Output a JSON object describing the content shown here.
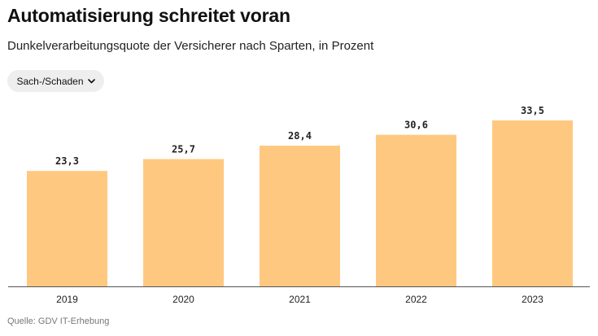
{
  "header": {
    "title": "Automatisierung schreitet voran",
    "subtitle": "Dunkelverarbeitungsquote der Versicherer nach Sparten, in Prozent"
  },
  "filter": {
    "selected": "Sach-/Schaden",
    "icon": "chevron-down-icon"
  },
  "chart_data": {
    "type": "bar",
    "categories": [
      "2019",
      "2020",
      "2021",
      "2022",
      "2023"
    ],
    "values": [
      23.3,
      25.7,
      28.4,
      30.6,
      33.5
    ],
    "value_labels": [
      "23,3",
      "25,7",
      "28,4",
      "30,6",
      "33,5"
    ],
    "title": "Automatisierung schreitet voran",
    "subtitle": "Dunkelverarbeitungsquote der Versicherer nach Sparten, in Prozent",
    "xlabel": "",
    "ylabel": "",
    "ylim": [
      0,
      33.5
    ],
    "grid": false,
    "colors": {
      "bar": "#ffc880",
      "baseline": "#555555"
    }
  },
  "footer": {
    "source": "Quelle: GDV IT-Erhebung"
  }
}
